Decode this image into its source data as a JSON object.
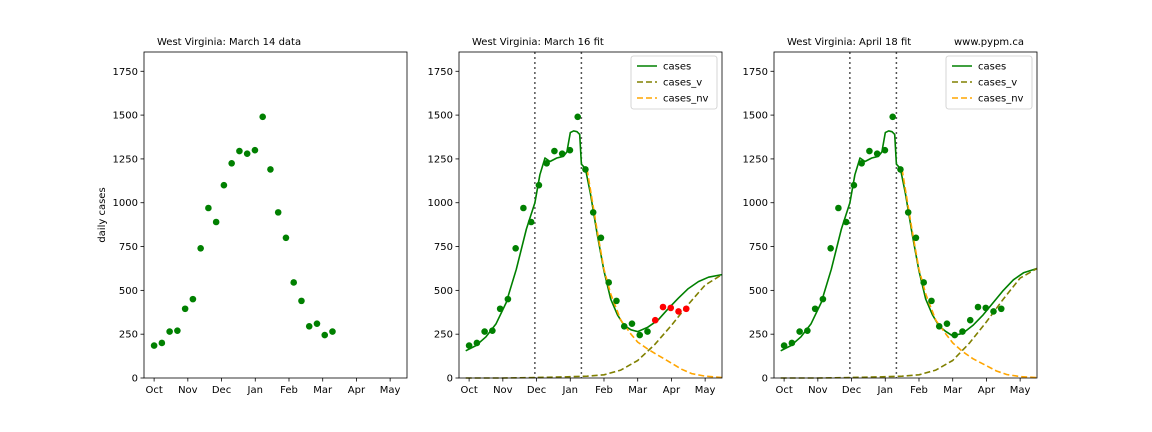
{
  "chart_data": [
    {
      "type": "scatter",
      "title": "West Virginia:  March 14 data",
      "xlabel": "",
      "ylabel": "daily cases",
      "xlim": [
        -0.3,
        7.5
      ],
      "ylim": [
        0,
        1860
      ],
      "xticks": [
        {
          "label": "Oct",
          "value": 0
        },
        {
          "label": "Nov",
          "value": 1
        },
        {
          "label": "Dec",
          "value": 2
        },
        {
          "label": "Jan",
          "value": 3
        },
        {
          "label": "Feb",
          "value": 4
        },
        {
          "label": "Mar",
          "value": 5
        },
        {
          "label": "Apr",
          "value": 6
        },
        {
          "label": "May",
          "value": 7
        }
      ],
      "yticks": [
        0,
        250,
        500,
        750,
        1000,
        1250,
        1500,
        1750
      ],
      "grid": false,
      "series": [
        {
          "name": "",
          "kind": "points",
          "color": "#008000",
          "x": [
            0.0,
            0.23,
            0.46,
            0.69,
            0.92,
            1.15,
            1.38,
            1.61,
            1.84,
            2.07,
            2.3,
            2.53,
            2.76,
            2.99,
            3.22,
            3.45,
            3.68,
            3.91,
            4.14,
            4.37,
            4.6,
            4.83,
            5.06,
            5.29
          ],
          "y": [
            185,
            200,
            265,
            270,
            395,
            450,
            740,
            970,
            890,
            1100,
            1225,
            1295,
            1280,
            1300,
            1490,
            1190,
            945,
            800,
            545,
            440,
            295,
            310,
            245,
            265
          ]
        }
      ]
    },
    {
      "type": "line",
      "title": "West Virginia:  March 16 fit",
      "xlabel": "",
      "ylabel": "",
      "xlim": [
        -0.3,
        7.5
      ],
      "ylim": [
        0,
        1860
      ],
      "xticks": [
        {
          "label": "Oct",
          "value": 0
        },
        {
          "label": "Nov",
          "value": 1
        },
        {
          "label": "Dec",
          "value": 2
        },
        {
          "label": "Jan",
          "value": 3
        },
        {
          "label": "Feb",
          "value": 4
        },
        {
          "label": "Mar",
          "value": 5
        },
        {
          "label": "Apr",
          "value": 6
        },
        {
          "label": "May",
          "value": 7
        }
      ],
      "yticks": [
        0,
        250,
        500,
        750,
        1000,
        1250,
        1500,
        1750
      ],
      "grid": false,
      "legend": {
        "position": "top-right",
        "entries": [
          {
            "label": "cases",
            "color": "#008000",
            "style": "solid"
          },
          {
            "label": "cases_v",
            "color": "#808000",
            "style": "dashed"
          },
          {
            "label": "cases_nv",
            "color": "#ffa500",
            "style": "dashed"
          }
        ]
      },
      "vlines": [
        1.95,
        3.33
      ],
      "series": [
        {
          "name": "cases",
          "kind": "line",
          "style": "solid",
          "color": "#008000",
          "x": [
            -0.1,
            0.2,
            0.5,
            0.8,
            1.1,
            1.4,
            1.7,
            1.95,
            2.1,
            2.25,
            2.4,
            2.6,
            2.8,
            2.9,
            3.0,
            3.1,
            3.2,
            3.28,
            3.33,
            3.45,
            3.6,
            3.8,
            4.0,
            4.2,
            4.4,
            4.6,
            4.8,
            5.0,
            5.3,
            5.6,
            5.9,
            6.2,
            6.5,
            6.8,
            7.1,
            7.5
          ],
          "y": [
            155,
            185,
            235,
            310,
            430,
            620,
            850,
            1000,
            1160,
            1255,
            1235,
            1255,
            1265,
            1290,
            1400,
            1410,
            1405,
            1390,
            1220,
            1195,
            1050,
            820,
            610,
            450,
            360,
            300,
            275,
            265,
            290,
            330,
            395,
            455,
            510,
            550,
            575,
            590
          ]
        },
        {
          "name": "cases_v",
          "kind": "line",
          "style": "dashed",
          "color": "#808000",
          "x": [
            -0.1,
            1.0,
            2.0,
            2.8,
            3.5,
            4.0,
            4.5,
            5.0,
            5.5,
            6.0,
            6.5,
            7.0,
            7.5
          ],
          "y": [
            0,
            0,
            3,
            6,
            10,
            18,
            45,
            100,
            190,
            300,
            420,
            530,
            590
          ]
        },
        {
          "name": "cases_nv",
          "kind": "line",
          "style": "dashed",
          "color": "#ffa500",
          "x": [
            3.5,
            3.8,
            4.0,
            4.2,
            4.5,
            4.8,
            5.0,
            5.3,
            5.6,
            6.0,
            6.3,
            6.6,
            7.0,
            7.5
          ],
          "y": [
            1190,
            840,
            620,
            480,
            330,
            250,
            205,
            165,
            130,
            85,
            50,
            25,
            10,
            3
          ]
        },
        {
          "name": "",
          "kind": "points",
          "color": "#008000",
          "x": [
            0.0,
            0.23,
            0.46,
            0.69,
            0.92,
            1.15,
            1.38,
            1.61,
            1.84,
            2.07,
            2.3,
            2.53,
            2.76,
            2.99,
            3.22,
            3.45,
            3.68,
            3.91,
            4.14,
            4.37,
            4.6,
            4.83,
            5.06,
            5.29
          ],
          "y": [
            185,
            200,
            265,
            270,
            395,
            450,
            740,
            970,
            890,
            1100,
            1225,
            1295,
            1280,
            1300,
            1490,
            1190,
            945,
            800,
            545,
            440,
            295,
            310,
            245,
            265
          ]
        },
        {
          "name": "",
          "kind": "points",
          "color": "#ff0000",
          "x": [
            5.52,
            5.75,
            5.98,
            6.21,
            6.44
          ],
          "y": [
            330,
            405,
            400,
            380,
            395
          ]
        }
      ]
    },
    {
      "type": "line",
      "title": "West Virginia:  April 18 fit",
      "annotation": "www.pypm.ca",
      "xlabel": "",
      "ylabel": "",
      "xlim": [
        -0.3,
        7.5
      ],
      "ylim": [
        0,
        1860
      ],
      "xticks": [
        {
          "label": "Oct",
          "value": 0
        },
        {
          "label": "Nov",
          "value": 1
        },
        {
          "label": "Dec",
          "value": 2
        },
        {
          "label": "Jan",
          "value": 3
        },
        {
          "label": "Feb",
          "value": 4
        },
        {
          "label": "Mar",
          "value": 5
        },
        {
          "label": "Apr",
          "value": 6
        },
        {
          "label": "May",
          "value": 7
        }
      ],
      "yticks": [
        0,
        250,
        500,
        750,
        1000,
        1250,
        1500,
        1750
      ],
      "grid": false,
      "legend": {
        "position": "top-right",
        "entries": [
          {
            "label": "cases",
            "color": "#008000",
            "style": "solid"
          },
          {
            "label": "cases_v",
            "color": "#808000",
            "style": "dashed"
          },
          {
            "label": "cases_nv",
            "color": "#ffa500",
            "style": "dashed"
          }
        ]
      },
      "vlines": [
        1.95,
        3.33
      ],
      "series": [
        {
          "name": "cases",
          "kind": "line",
          "style": "solid",
          "color": "#008000",
          "x": [
            -0.1,
            0.2,
            0.5,
            0.8,
            1.1,
            1.4,
            1.7,
            1.95,
            2.1,
            2.25,
            2.4,
            2.6,
            2.8,
            2.9,
            3.0,
            3.1,
            3.2,
            3.28,
            3.33,
            3.45,
            3.6,
            3.8,
            4.0,
            4.2,
            4.4,
            4.6,
            4.8,
            5.0,
            5.3,
            5.6,
            5.9,
            6.2,
            6.5,
            6.8,
            7.1,
            7.5
          ],
          "y": [
            155,
            185,
            235,
            310,
            430,
            620,
            850,
            1000,
            1160,
            1255,
            1235,
            1255,
            1265,
            1290,
            1400,
            1410,
            1405,
            1390,
            1220,
            1195,
            1050,
            820,
            610,
            450,
            360,
            295,
            265,
            240,
            255,
            300,
            360,
            430,
            500,
            560,
            600,
            625
          ]
        },
        {
          "name": "cases_v",
          "kind": "line",
          "style": "dashed",
          "color": "#808000",
          "x": [
            -0.1,
            1.0,
            2.0,
            2.8,
            3.5,
            4.0,
            4.5,
            5.0,
            5.5,
            6.0,
            6.5,
            7.0,
            7.5
          ],
          "y": [
            0,
            0,
            3,
            6,
            10,
            18,
            45,
            100,
            200,
            320,
            450,
            570,
            625
          ]
        },
        {
          "name": "cases_nv",
          "kind": "line",
          "style": "dashed",
          "color": "#ffa500",
          "x": [
            3.5,
            3.8,
            4.0,
            4.2,
            4.5,
            4.8,
            5.0,
            5.3,
            5.6,
            6.0,
            6.3,
            6.6,
            7.0,
            7.5
          ],
          "y": [
            1190,
            840,
            620,
            480,
            330,
            250,
            200,
            150,
            110,
            70,
            40,
            20,
            8,
            2
          ]
        },
        {
          "name": "",
          "kind": "points",
          "color": "#008000",
          "x": [
            0.0,
            0.23,
            0.46,
            0.69,
            0.92,
            1.15,
            1.38,
            1.61,
            1.84,
            2.07,
            2.3,
            2.53,
            2.76,
            2.99,
            3.22,
            3.45,
            3.68,
            3.91,
            4.14,
            4.37,
            4.6,
            4.83,
            5.06,
            5.29,
            5.52,
            5.75,
            5.98,
            6.21,
            6.44
          ],
          "y": [
            185,
            200,
            265,
            270,
            395,
            450,
            740,
            970,
            890,
            1100,
            1225,
            1295,
            1280,
            1300,
            1490,
            1190,
            945,
            800,
            545,
            440,
            295,
            310,
            245,
            265,
            330,
            405,
            400,
            380,
            395
          ]
        }
      ]
    }
  ]
}
